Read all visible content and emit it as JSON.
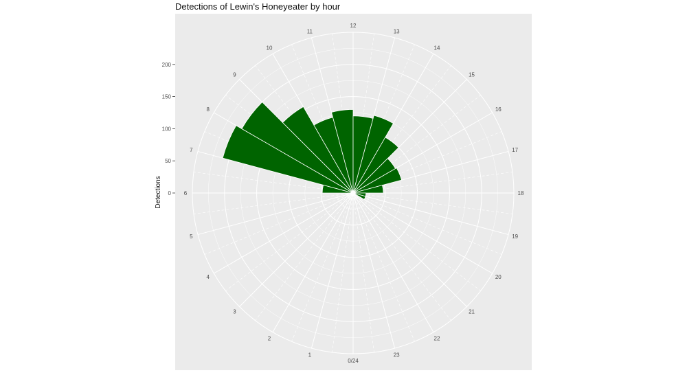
{
  "chart_data": {
    "type": "bar",
    "coord": "polar",
    "title": "Detections of Lewin's Honeyeater by hour",
    "xlabel": "",
    "ylabel": "Detections",
    "hours": [
      "0/24",
      "1",
      "2",
      "3",
      "4",
      "5",
      "6",
      "7",
      "8",
      "9",
      "10",
      "11",
      "12",
      "13",
      "14",
      "15",
      "16",
      "17",
      "18",
      "19",
      "20",
      "21",
      "22",
      "23"
    ],
    "y_ticks": [
      0,
      50,
      100,
      150,
      200
    ],
    "ylim": [
      0,
      250
    ],
    "grid": true,
    "series": [
      {
        "values": [
          0,
          0,
          0,
          0,
          0,
          0,
          48,
          210,
          200,
          155,
          122,
          130,
          120,
          125,
          100,
          76,
          78,
          47,
          20,
          20,
          0,
          0,
          0,
          0
        ]
      }
    ],
    "bar_color": "#006400",
    "panel_color": "#ebebeb",
    "grid_color": "#ffffff"
  }
}
